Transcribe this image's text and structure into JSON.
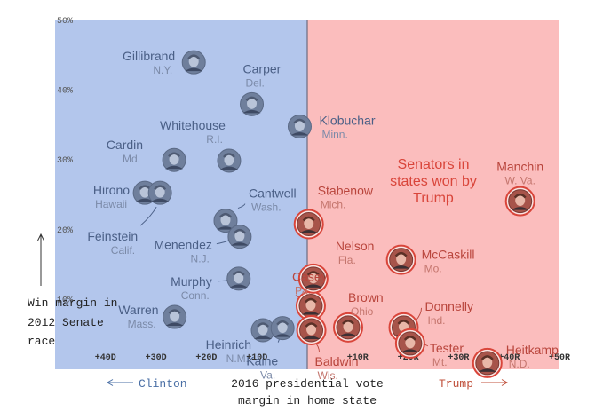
{
  "chart_data": {
    "type": "scatter",
    "xlabel": "2016 presidential vote margin in home state",
    "ylabel": "Win margin in 2012 Senate race",
    "xlim": [
      -50,
      50
    ],
    "ylim": [
      0,
      50
    ],
    "x_ticks": [
      "+40D",
      "+30D",
      "+20D",
      "+10D",
      "",
      "+10R",
      "+20R",
      "+30R",
      "+40R",
      "+50R"
    ],
    "x_tick_values": [
      -40,
      -30,
      -20,
      -10,
      0,
      10,
      20,
      30,
      40,
      50
    ],
    "y_ticks": [
      "10%",
      "20%",
      "30%",
      "40%",
      "50%"
    ],
    "y_tick_values": [
      10,
      20,
      30,
      40,
      50
    ],
    "left_region_label": "Clinton",
    "right_region_label": "Trump",
    "annotation": "Senators in states won by Trump",
    "colors": {
      "dem_region": "#b3c6ec",
      "rep_region": "#fbbdbd",
      "dem_label": "#4a5f86",
      "dem_state": "#7b8aa8",
      "rep_label": "#b9453c",
      "rep_state": "#c4756d",
      "rep_ring": "#d9453a",
      "annotation": "#d9453a",
      "clinton": "#4a6fa5",
      "trump": "#c0503b"
    },
    "points": [
      {
        "name": "Gillibrand",
        "state": "N.Y.",
        "x": -22.5,
        "y": 44.0,
        "trump_state": false
      },
      {
        "name": "Carper",
        "state": "Del.",
        "x": -11.0,
        "y": 38.0,
        "trump_state": false
      },
      {
        "name": "Klobuchar",
        "state": "Minn.",
        "x": -1.5,
        "y": 34.8,
        "trump_state": false
      },
      {
        "name": "Whitehouse",
        "state": "R.I.",
        "x": -15.5,
        "y": 29.9,
        "trump_state": false
      },
      {
        "name": "Cardin",
        "state": "Md.",
        "x": -26.4,
        "y": 30.0,
        "trump_state": false
      },
      {
        "name": "Hirono",
        "state": "Hawaii",
        "x": -32.2,
        "y": 25.3,
        "trump_state": false
      },
      {
        "name": "Feinstein",
        "state": "Calif.",
        "x": -29.2,
        "y": 25.3,
        "trump_state": false
      },
      {
        "name": "Cantwell",
        "state": "Wash.",
        "x": -16.2,
        "y": 21.3,
        "trump_state": false
      },
      {
        "name": "Menendez",
        "state": "N.J.",
        "x": -13.4,
        "y": 19.0,
        "trump_state": false
      },
      {
        "name": "Stabenow",
        "state": "Mich.",
        "x": 0.3,
        "y": 20.8,
        "trump_state": true
      },
      {
        "name": "Murphy",
        "state": "Conn.",
        "x": -13.6,
        "y": 13.0,
        "trump_state": false
      },
      {
        "name": "Casey",
        "state": "Pa.",
        "x": 0.7,
        "y": 9.1,
        "trump_state": true
      },
      {
        "name": "Warren",
        "state": "Mass.",
        "x": -26.3,
        "y": 7.5,
        "trump_state": false
      },
      {
        "name": "Heinrich",
        "state": "N.M.",
        "x": -8.8,
        "y": 5.6,
        "trump_state": false
      },
      {
        "name": "Kaine",
        "state": "Va.",
        "x": -4.9,
        "y": 5.9,
        "trump_state": false
      },
      {
        "name": "Baldwin",
        "state": "Wis.",
        "x": 0.8,
        "y": 5.6,
        "trump_state": true
      },
      {
        "name": "Nelson",
        "state": "Fla.",
        "x": 1.2,
        "y": 13.0,
        "trump_state": true
      },
      {
        "name": "Brown",
        "state": "Ohio",
        "x": 8.1,
        "y": 6.0,
        "trump_state": true
      },
      {
        "name": "Donnelly",
        "state": "Ind.",
        "x": 19.1,
        "y": 6.0,
        "trump_state": true
      },
      {
        "name": "Tester",
        "state": "Mt.",
        "x": 20.4,
        "y": 3.7,
        "trump_state": true
      },
      {
        "name": "McCaskill",
        "state": "Mo.",
        "x": 18.6,
        "y": 15.7,
        "trump_state": true
      },
      {
        "name": "Manchin",
        "state": "W. Va.",
        "x": 42.2,
        "y": 24.1,
        "trump_state": true
      },
      {
        "name": "Heitkamp",
        "state": "N.D.",
        "x": 35.7,
        "y": 0.9,
        "trump_state": true
      }
    ]
  }
}
